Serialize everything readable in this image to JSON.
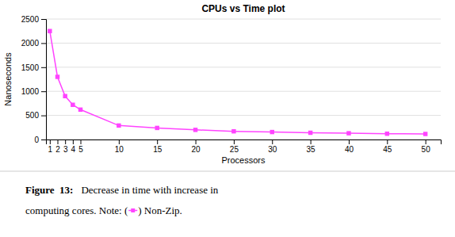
{
  "chart_data": {
    "type": "line",
    "title": "CPUs vs Time plot",
    "xlabel": "Processors",
    "ylabel": "Nanoseconds",
    "x": [
      1,
      2,
      3,
      4,
      5,
      10,
      15,
      20,
      25,
      30,
      35,
      40,
      45,
      50
    ],
    "values": [
      2250,
      1300,
      900,
      720,
      620,
      290,
      240,
      200,
      170,
      155,
      140,
      130,
      120,
      115
    ],
    "color": "#FF44FF",
    "marker": "square",
    "xlim": [
      0.5,
      52
    ],
    "xticks": [
      1,
      2,
      3,
      4,
      5,
      10,
      15,
      20,
      25,
      30,
      35,
      40,
      45,
      50
    ],
    "ylim": [
      0,
      2500
    ],
    "yticks": [
      0,
      500,
      1000,
      1500,
      2000,
      2500
    ],
    "grid": "y",
    "annotations": [
      "Figure  13:",
      "Decrease in time with increase in",
      "computing cores. Note: (    ) Non-Zip."
    ]
  }
}
